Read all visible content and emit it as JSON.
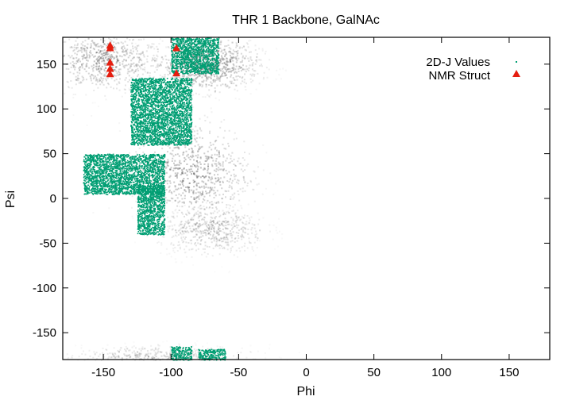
{
  "chart_data": {
    "type": "scatter",
    "title": "THR 1 Backbone, GalNAc",
    "xlabel": "Phi",
    "ylabel": "Psi",
    "xlim": [
      -180,
      180
    ],
    "ylim": [
      -180,
      180
    ],
    "x_ticks": [
      -150,
      -100,
      -50,
      0,
      50,
      100,
      150
    ],
    "y_ticks": [
      -150,
      -100,
      -50,
      0,
      50,
      100,
      150
    ],
    "grid": false,
    "legend_position": "top-right",
    "background_density": {
      "description": "grayscale MD population density",
      "color": "#555555",
      "centers": [
        {
          "phi": -150,
          "psi": 155,
          "spread_phi": 22,
          "spread_psi": 18,
          "weight": 0.8
        },
        {
          "phi": -75,
          "psi": 150,
          "spread_phi": 20,
          "spread_psi": 15,
          "weight": 1.0
        },
        {
          "phi": -85,
          "psi": 30,
          "spread_phi": 22,
          "spread_psi": 30,
          "weight": 0.9
        },
        {
          "phi": -70,
          "psi": -35,
          "spread_phi": 20,
          "spread_psi": 15,
          "weight": 0.6
        },
        {
          "phi": -110,
          "psi": -175,
          "spread_phi": 35,
          "spread_psi": 6,
          "weight": 0.5
        }
      ]
    },
    "series": [
      {
        "name": "2D-J Values",
        "marker": "point",
        "color": "#009e73",
        "regions": [
          {
            "phi": [
              -165,
              -105
            ],
            "psi": [
              5,
              50
            ]
          },
          {
            "phi": [
              -125,
              -105
            ],
            "psi": [
              -40,
              15
            ]
          },
          {
            "phi": [
              -100,
              -65
            ],
            "psi": [
              140,
              180
            ]
          },
          {
            "phi": [
              -130,
              -85
            ],
            "psi": [
              60,
              135
            ]
          },
          {
            "phi": [
              -100,
              -85
            ],
            "psi": [
              -180,
              -165
            ]
          },
          {
            "phi": [
              -80,
              -60
            ],
            "psi": [
              -180,
              -168
            ]
          }
        ]
      },
      {
        "name": "NMR Struct",
        "marker": "triangle",
        "color": "#e51e10",
        "points": [
          {
            "x": -145,
            "y": 171
          },
          {
            "x": -145,
            "y": 168
          },
          {
            "x": -145,
            "y": 152
          },
          {
            "x": -145,
            "y": 145
          },
          {
            "x": -145,
            "y": 139
          },
          {
            "x": -96,
            "y": 168
          },
          {
            "x": -96,
            "y": 140
          }
        ]
      }
    ]
  }
}
